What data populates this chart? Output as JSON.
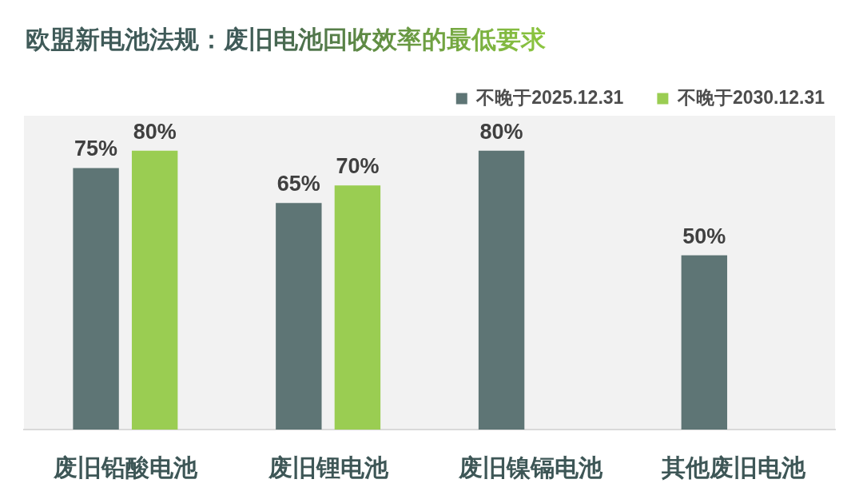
{
  "chart_data": {
    "type": "bar",
    "title": "欧盟新电池法规：废旧电池回收效率的最低要求",
    "categories": [
      "废旧铅酸电池",
      "废旧锂电池",
      "废旧镍镉电池",
      "其他废旧电池"
    ],
    "series": [
      {
        "name": "不晚于2025.12.31",
        "color": "#5e7575",
        "values": [
          75,
          65,
          80,
          50
        ],
        "value_labels": [
          "75%",
          "65%",
          "80%",
          "50%"
        ]
      },
      {
        "name": "不晚于2030.12.31",
        "color": "#9acd52",
        "values": [
          80,
          70,
          null,
          null
        ],
        "value_labels": [
          "80%",
          "70%",
          null,
          null
        ]
      }
    ],
    "legend": "top right"
  }
}
